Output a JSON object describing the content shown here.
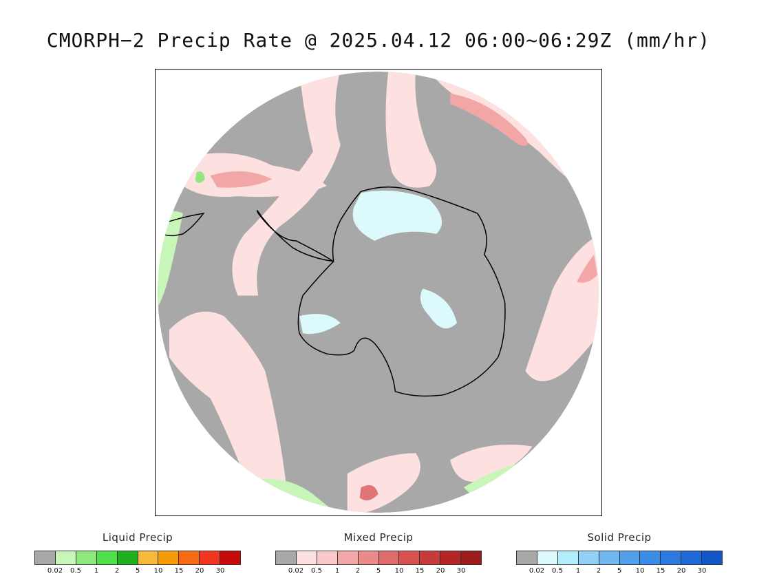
{
  "title": "CMORPH−2 Precip Rate @ 2025.04.12 06:00~06:29Z (mm/hr)",
  "map": {
    "projection": "south-polar-stereographic",
    "colors": {
      "no_precip": "#a8a8a8",
      "mixed_light": "#fde0e0",
      "mixed_medium": "#f3a6a6",
      "mixed_heavy": "#e07575",
      "liquid_light": "#c8f5b8",
      "liquid_medium": "#8ee87e",
      "solid_light": "#dcfafc",
      "coastline": "#000000"
    }
  },
  "legends": [
    {
      "title": "Liquid Precip",
      "colors": [
        "#a8a8a8",
        "#c8f5b8",
        "#8ee87e",
        "#4fe04a",
        "#1fb01f",
        "#f7b93a",
        "#f59b0a",
        "#f56a12",
        "#f3351f",
        "#c70a0a"
      ],
      "ticks": [
        "0.02",
        "0.5",
        "1",
        "2",
        "5",
        "10",
        "15",
        "20",
        "30"
      ]
    },
    {
      "title": "Mixed Precip",
      "colors": [
        "#a8a8a8",
        "#fde0e0",
        "#fbc9c9",
        "#f3a6a6",
        "#ec8a8a",
        "#e06b6b",
        "#d85252",
        "#c83b3b",
        "#b42626",
        "#9c1c1c"
      ],
      "ticks": [
        "0.02",
        "0.5",
        "1",
        "2",
        "5",
        "10",
        "15",
        "20",
        "30"
      ]
    },
    {
      "title": "Solid Precip",
      "colors": [
        "#a8a8a8",
        "#dcfafc",
        "#b2eefb",
        "#92d0f6",
        "#72b8f0",
        "#52a0ec",
        "#3a8ce8",
        "#2c7ae0",
        "#1f6ad8",
        "#1456c6"
      ],
      "ticks": [
        "0.02",
        "0.5",
        "1",
        "2",
        "5",
        "10",
        "15",
        "20",
        "30"
      ]
    }
  ]
}
